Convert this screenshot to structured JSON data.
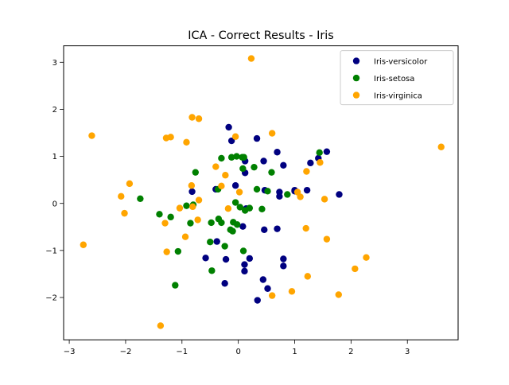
{
  "chart_data": {
    "type": "scatter",
    "title": "ICA - Correct Results - Iris",
    "xlabel": "",
    "ylabel": "",
    "xlim": [
      -3.1,
      3.9
    ],
    "ylim": [
      -2.9,
      3.35
    ],
    "xticks": [
      -3,
      -2,
      -1,
      0,
      1,
      2,
      3
    ],
    "yticks": [
      -2,
      -1,
      0,
      1,
      2,
      3
    ],
    "xtick_labels": [
      "−3",
      "−2",
      "−1",
      "0",
      "1",
      "2",
      "3"
    ],
    "ytick_labels": [
      "−2",
      "−1",
      "0",
      "1",
      "2",
      "3"
    ],
    "grid": false,
    "legend_position": "top-right",
    "series": [
      {
        "name": "Iris-versicolor",
        "color": "#000080",
        "points": [
          [
            -0.17,
            1.62
          ],
          [
            -0.12,
            1.33
          ],
          [
            0.33,
            1.38
          ],
          [
            -0.05,
            0.38
          ],
          [
            0.12,
            0.9
          ],
          [
            0.12,
            0.65
          ],
          [
            0.45,
            0.9
          ],
          [
            0.69,
            1.09
          ],
          [
            0.8,
            0.81
          ],
          [
            0.47,
            0.28
          ],
          [
            0.73,
            0.24
          ],
          [
            0.73,
            0.15
          ],
          [
            1.0,
            0.28
          ],
          [
            1.22,
            0.28
          ],
          [
            1.28,
            0.86
          ],
          [
            1.42,
            0.96
          ],
          [
            1.57,
            1.1
          ],
          [
            1.79,
            0.19
          ],
          [
            -0.82,
            0.25
          ],
          [
            -0.4,
            0.3
          ],
          [
            0.08,
            -0.49
          ],
          [
            0.46,
            -0.56
          ],
          [
            0.69,
            -0.54
          ],
          [
            -0.58,
            -1.16
          ],
          [
            -0.38,
            -0.81
          ],
          [
            -0.22,
            -1.19
          ],
          [
            0.11,
            -1.3
          ],
          [
            0.11,
            -1.44
          ],
          [
            0.2,
            -1.17
          ],
          [
            -0.24,
            -1.7
          ],
          [
            0.44,
            -1.62
          ],
          [
            0.52,
            -1.81
          ],
          [
            0.34,
            -2.06
          ],
          [
            0.8,
            -1.18
          ],
          [
            0.8,
            -1.33
          ],
          [
            0.14,
            -0.11
          ],
          [
            1.0,
            0.26
          ]
        ]
      },
      {
        "name": "Iris-setosa",
        "color": "#008000",
        "points": [
          [
            1.44,
            1.08
          ],
          [
            -0.76,
            0.66
          ],
          [
            -0.3,
            0.96
          ],
          [
            -0.12,
            0.98
          ],
          [
            -0.03,
            1.0
          ],
          [
            0.07,
            0.98
          ],
          [
            0.1,
            0.98
          ],
          [
            0.28,
            0.77
          ],
          [
            0.08,
            0.74
          ],
          [
            0.59,
            0.66
          ],
          [
            -0.36,
            0.3
          ],
          [
            0.33,
            0.3
          ],
          [
            0.52,
            0.26
          ],
          [
            0.87,
            0.19
          ],
          [
            -1.74,
            0.1
          ],
          [
            -0.92,
            -0.05
          ],
          [
            -0.8,
            -0.03
          ],
          [
            -0.05,
            0.02
          ],
          [
            0.03,
            -0.08
          ],
          [
            0.12,
            -0.15
          ],
          [
            0.42,
            -0.12
          ],
          [
            0.2,
            -0.1
          ],
          [
            -1.4,
            -0.23
          ],
          [
            -1.2,
            -0.29
          ],
          [
            -0.85,
            -0.42
          ],
          [
            -0.48,
            -0.41
          ],
          [
            -0.35,
            -0.33
          ],
          [
            -0.3,
            -0.41
          ],
          [
            -0.09,
            -0.4
          ],
          [
            -0.02,
            -0.45
          ],
          [
            -0.14,
            -0.56
          ],
          [
            -0.1,
            -0.59
          ],
          [
            -1.07,
            -1.02
          ],
          [
            -0.5,
            -0.82
          ],
          [
            -0.24,
            -0.91
          ],
          [
            0.09,
            -1.01
          ],
          [
            -0.47,
            -1.43
          ],
          [
            -1.12,
            -1.74
          ]
        ]
      },
      {
        "name": "Iris-virginica",
        "color": "#ffa500",
        "points": [
          [
            0.23,
            3.08
          ],
          [
            -0.82,
            1.83
          ],
          [
            -0.7,
            1.8
          ],
          [
            -2.6,
            1.44
          ],
          [
            -1.28,
            1.39
          ],
          [
            -1.2,
            1.41
          ],
          [
            -0.05,
            1.42
          ],
          [
            0.6,
            1.49
          ],
          [
            3.6,
            1.2
          ],
          [
            -0.92,
            1.3
          ],
          [
            -0.4,
            0.78
          ],
          [
            -0.23,
            0.6
          ],
          [
            -0.3,
            0.37
          ],
          [
            0.02,
            0.24
          ],
          [
            -0.83,
            0.38
          ],
          [
            1.21,
            0.68
          ],
          [
            1.45,
            0.87
          ],
          [
            1.05,
            0.24
          ],
          [
            1.1,
            0.14
          ],
          [
            1.53,
            0.09
          ],
          [
            -1.93,
            0.42
          ],
          [
            -2.08,
            0.15
          ],
          [
            -2.02,
            -0.21
          ],
          [
            -0.7,
            0.07
          ],
          [
            -0.81,
            -0.07
          ],
          [
            -1.04,
            -0.1
          ],
          [
            -0.18,
            -0.11
          ],
          [
            -0.72,
            -0.35
          ],
          [
            -1.3,
            -0.42
          ],
          [
            -0.94,
            -0.71
          ],
          [
            -1.27,
            -1.03
          ],
          [
            1.2,
            -0.53
          ],
          [
            1.57,
            -0.76
          ],
          [
            -2.75,
            -0.88
          ],
          [
            1.23,
            -1.55
          ],
          [
            2.27,
            -1.15
          ],
          [
            2.07,
            -1.39
          ],
          [
            0.95,
            -1.87
          ],
          [
            0.6,
            -1.96
          ],
          [
            1.78,
            -1.94
          ],
          [
            -1.38,
            -2.6
          ]
        ]
      }
    ]
  }
}
